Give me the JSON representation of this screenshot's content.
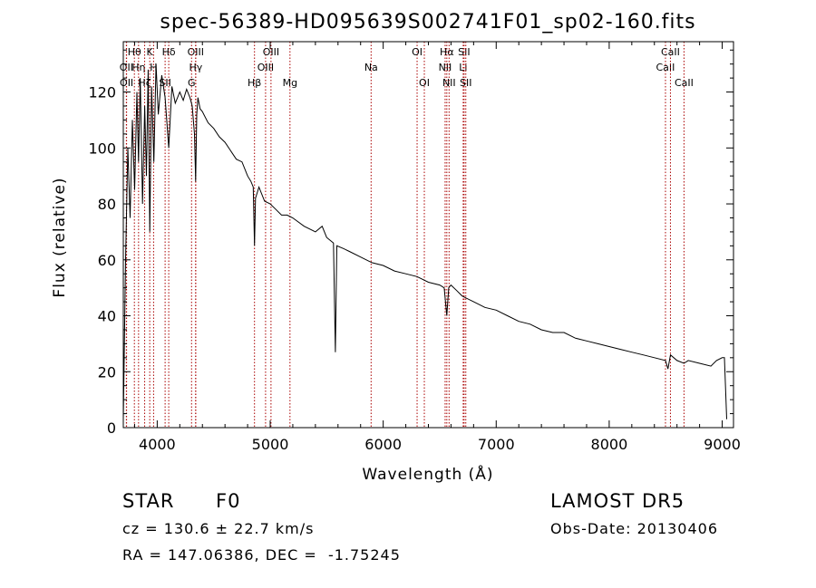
{
  "chart_data": {
    "type": "line",
    "title": "spec-56389-HD095639S002741F01_sp02-160.fits",
    "xlabel": "Wavelength (Å)",
    "ylabel": "Flux (relative)",
    "xlim": [
      3700,
      9100
    ],
    "ylim": [
      0,
      138
    ],
    "x_ticks": [
      4000,
      5000,
      6000,
      7000,
      8000,
      9000
    ],
    "y_ticks": [
      0,
      20,
      40,
      60,
      80,
      100,
      120
    ],
    "x_tick_labels": [
      "4000",
      "5000",
      "6000",
      "7000",
      "8000",
      "9000"
    ],
    "y_tick_labels": [
      "0",
      "20",
      "40",
      "60",
      "80",
      "100",
      "120"
    ],
    "grid": false,
    "legend": "none",
    "line_color": "#000000",
    "marker_color": "#aa0000",
    "series": [
      {
        "x": [
          3700,
          3720,
          3740,
          3760,
          3780,
          3800,
          3820,
          3835,
          3850,
          3870,
          3889,
          3905,
          3920,
          3934,
          3950,
          3970,
          3990,
          4010,
          4040,
          4070,
          4102,
          4130,
          4160,
          4200,
          4230,
          4260,
          4290,
          4310,
          4330,
          4340,
          4350,
          4360,
          4380,
          4400,
          4450,
          4500,
          4550,
          4600,
          4650,
          4700,
          4750,
          4800,
          4830,
          4850,
          4861,
          4870,
          4900,
          4950,
          5000,
          5050,
          5100,
          5150,
          5200,
          5300,
          5400,
          5460,
          5500,
          5560,
          5577,
          5590,
          5650,
          5700,
          5800,
          5900,
          6000,
          6100,
          6200,
          6300,
          6400,
          6500,
          6540,
          6563,
          6580,
          6600,
          6650,
          6700,
          6800,
          6900,
          7000,
          7100,
          7200,
          7300,
          7400,
          7500,
          7600,
          7700,
          7800,
          7900,
          8000,
          8100,
          8200,
          8300,
          8400,
          8498,
          8520,
          8542,
          8600,
          8662,
          8700,
          8800,
          8900,
          8950,
          9000,
          9020,
          9040
        ],
        "y": [
          3,
          60,
          100,
          75,
          110,
          85,
          120,
          95,
          125,
          80,
          115,
          90,
          128,
          70,
          122,
          95,
          130,
          112,
          126,
          118,
          100,
          122,
          116,
          120,
          117,
          121,
          118,
          115,
          105,
          88,
          112,
          118,
          114,
          113,
          109,
          107,
          104,
          102,
          99,
          96,
          95,
          90,
          88,
          86,
          65,
          82,
          86,
          81,
          80,
          78,
          76,
          76,
          75,
          72,
          70,
          72,
          68,
          66,
          27,
          65,
          64,
          63,
          61,
          59,
          58,
          56,
          55,
          54,
          52,
          51,
          50,
          40,
          50,
          51,
          49,
          47,
          45,
          43,
          42,
          40,
          38,
          37,
          35,
          34,
          34,
          32,
          31,
          30,
          29,
          28,
          27,
          26,
          25,
          24,
          21,
          26,
          24,
          23,
          24,
          23,
          22,
          24,
          25,
          25,
          3
        ]
      }
    ],
    "lines": [
      {
        "label": "OII",
        "x": 3727,
        "row": 1
      },
      {
        "label": "OII",
        "x": 3729,
        "row": 2
      },
      {
        "label": "Hθ",
        "x": 3798,
        "row": 0
      },
      {
        "label": "Hη",
        "x": 3835,
        "row": 1
      },
      {
        "label": "Hζ",
        "x": 3889,
        "row": 2
      },
      {
        "label": "K",
        "x": 3934,
        "row": 0
      },
      {
        "label": "H",
        "x": 3968,
        "row": 1
      },
      {
        "label": "SII",
        "x": 4070,
        "row": 2
      },
      {
        "label": "Hδ",
        "x": 4102,
        "row": 0
      },
      {
        "label": "OIII",
        "x": 4340,
        "row": 0
      },
      {
        "label": "Hγ",
        "x": 4341,
        "row": 1
      },
      {
        "label": "G",
        "x": 4304,
        "row": 2
      },
      {
        "label": "Hβ",
        "x": 4861,
        "row": 2
      },
      {
        "label": "OIII",
        "x": 4959,
        "row": 1
      },
      {
        "label": "OIII",
        "x": 5007,
        "row": 0
      },
      {
        "label": "Mg",
        "x": 5175,
        "row": 2
      },
      {
        "label": "Na",
        "x": 5893,
        "row": 1
      },
      {
        "label": "OI",
        "x": 6300,
        "row": 0
      },
      {
        "label": "OI",
        "x": 6364,
        "row": 2
      },
      {
        "label": "NII",
        "x": 6548,
        "row": 1
      },
      {
        "label": "Hα",
        "x": 6563,
        "row": 0
      },
      {
        "label": "NII",
        "x": 6583,
        "row": 2
      },
      {
        "label": "Li",
        "x": 6708,
        "row": 1
      },
      {
        "label": "SII",
        "x": 6716,
        "row": 0
      },
      {
        "label": "SII",
        "x": 6731,
        "row": 2
      },
      {
        "label": "CaII",
        "x": 8498,
        "row": 1
      },
      {
        "label": "CaII",
        "x": 8542,
        "row": 0
      },
      {
        "label": "CaII",
        "x": 8662,
        "row": 2
      }
    ]
  },
  "info": {
    "class_label": "STAR",
    "subclass": "F0",
    "survey": "LAMOST DR5",
    "cz": "cz = 130.6 ± 22.7 km/s",
    "obs_date": "Obs-Date: 20130406",
    "radec": "RA = 147.06386, DEC =  -1.75245"
  }
}
